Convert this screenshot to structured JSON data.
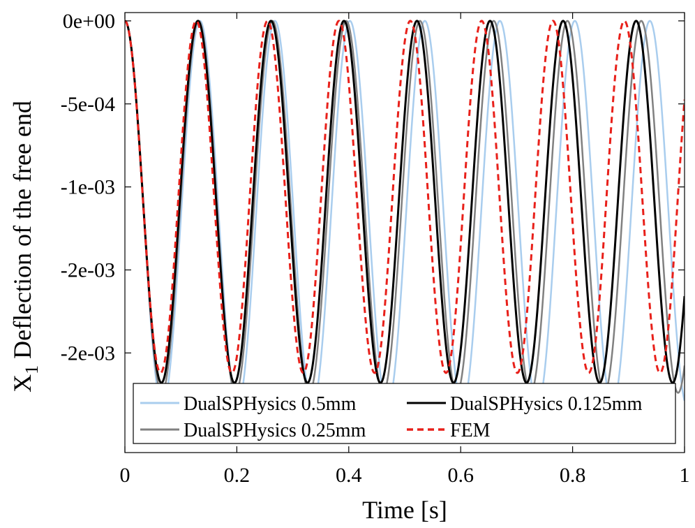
{
  "chart_data": {
    "type": "line",
    "title": "",
    "xlabel": "Time [s]",
    "ylabel_main": "X",
    "ylabel_sub": "1",
    "ylabel_rest": " Deflection of the free end",
    "xlim": [
      0,
      1
    ],
    "ylim": [
      -0.0026,
      5e-05
    ],
    "x_ticks": [
      0,
      0.2,
      0.4,
      0.6,
      0.8,
      1
    ],
    "x_tick_labels": [
      "0",
      "0.2",
      "0.4",
      "0.6",
      "0.8",
      "1"
    ],
    "y_ticks": [
      0,
      -0.0005,
      -0.001,
      -0.0015,
      -0.002
    ],
    "y_tick_labels": [
      "0e+00",
      "-5e-04",
      "-1e-03",
      "-2e-03",
      "-2e-03"
    ],
    "grid": false,
    "legend_position": "bottom",
    "series": [
      {
        "name": "DualSPHysics 0.5mm",
        "color": "#a9cdee",
        "style": "solid",
        "period": 0.134,
        "amplitude": 0.00116,
        "offset": -0.00116,
        "start_time": 0.0
      },
      {
        "name": "DualSPHysics 0.125mm",
        "color": "#000000",
        "style": "solid",
        "period": 0.1305,
        "amplitude": 0.00109,
        "offset": -0.00109,
        "start_time": 0.0
      },
      {
        "name": "DualSPHysics 0.25mm",
        "color": "#808080",
        "style": "solid",
        "period": 0.1318,
        "amplitude": 0.00112,
        "offset": -0.00112,
        "start_time": 0.0
      },
      {
        "name": "FEM",
        "color": "#e8201a",
        "style": "dashed",
        "period": 0.1275,
        "amplitude": 0.00106,
        "offset": -0.00106,
        "start_time": 0.0
      }
    ]
  }
}
